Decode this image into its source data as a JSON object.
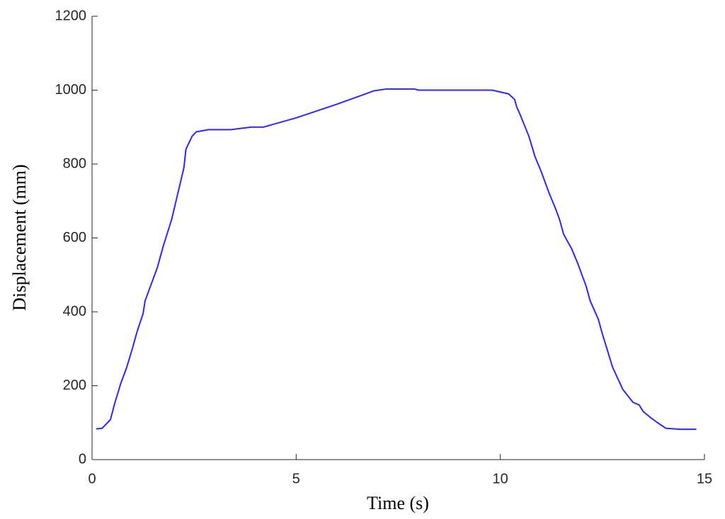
{
  "chart_data": {
    "type": "line",
    "xlabel": "Time (s)",
    "ylabel": "Displacement (mm)",
    "x": [
      0.1,
      0.25,
      0.45,
      0.55,
      0.7,
      0.85,
      1.0,
      1.1,
      1.25,
      1.3,
      1.5,
      1.6,
      1.75,
      1.95,
      2.1,
      2.25,
      2.3,
      2.45,
      2.55,
      2.85,
      3.4,
      3.9,
      4.2,
      5,
      6,
      6.9,
      7.2,
      7.9,
      8,
      9.8,
      10,
      10.2,
      10.35,
      10.4,
      10.5,
      10.7,
      10.85,
      11.0,
      11.1,
      11.2,
      11.35,
      11.45,
      11.55,
      11.75,
      11.9,
      12.1,
      12.2,
      12.4,
      12.5,
      12.75,
      13.0,
      13.25,
      13.4,
      13.5,
      13.7,
      13.85,
      14.05,
      14.4,
      14.8
    ],
    "values": [
      83,
      85,
      108,
      150,
      205,
      250,
      305,
      345,
      395,
      430,
      490,
      520,
      580,
      650,
      720,
      790,
      840,
      875,
      887,
      893,
      893,
      900,
      900,
      925,
      962,
      998,
      1003,
      1003,
      1000,
      1000,
      995,
      990,
      975,
      955,
      930,
      875,
      820,
      780,
      750,
      720,
      680,
      650,
      610,
      570,
      530,
      470,
      430,
      380,
      340,
      250,
      190,
      155,
      148,
      130,
      112,
      100,
      85,
      82,
      82
    ],
    "color": "#2828ff",
    "xlim": [
      0,
      15
    ],
    "xticks": [
      0,
      5,
      10,
      15
    ],
    "ylim": [
      0,
      1200
    ],
    "yticks": [
      0,
      200,
      400,
      600,
      800,
      1000,
      1200
    ]
  }
}
